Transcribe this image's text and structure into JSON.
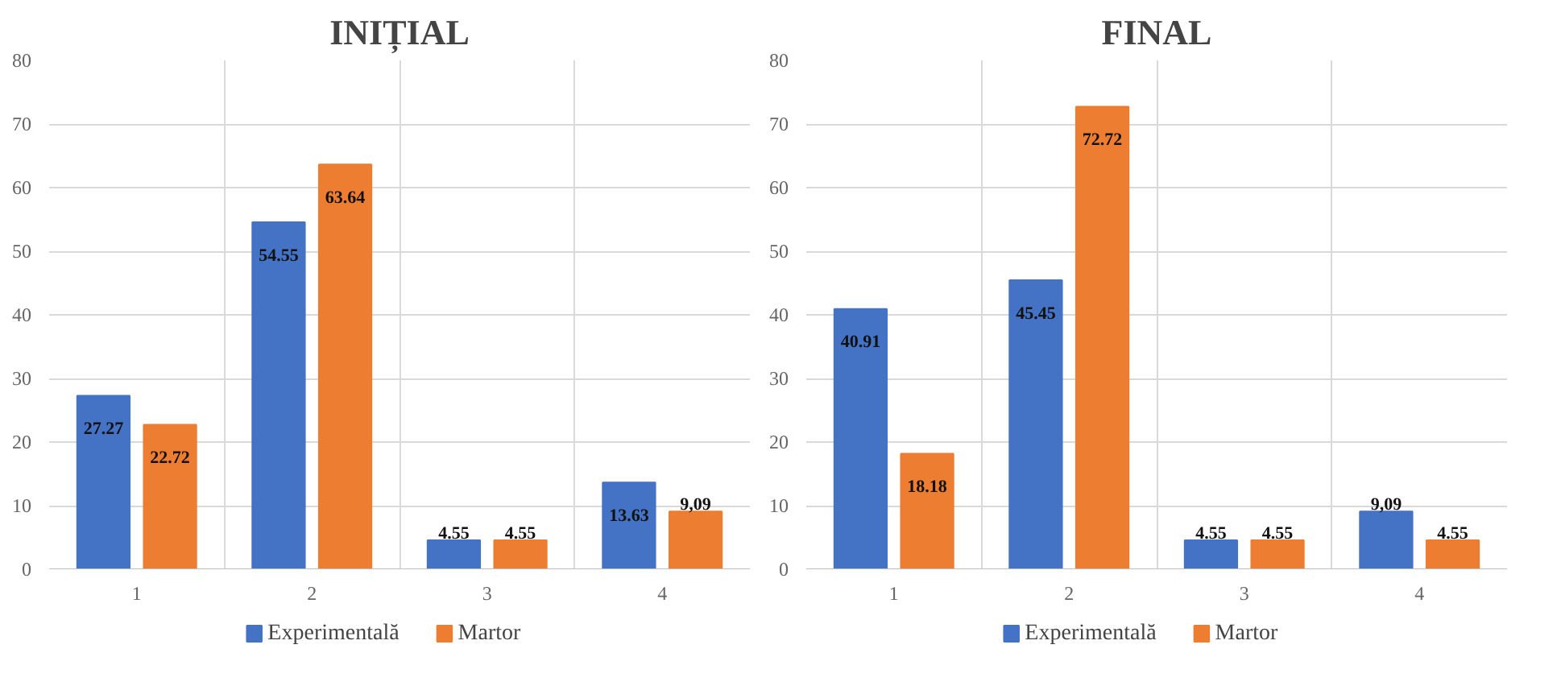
{
  "chart_data": [
    {
      "type": "bar",
      "title": "INIȚIAL",
      "categories": [
        "1",
        "2",
        "3",
        "4"
      ],
      "ylim": [
        0,
        80
      ],
      "yticks": [
        0,
        10,
        20,
        30,
        40,
        50,
        60,
        70,
        80
      ],
      "grid": true,
      "legend": "bottom",
      "series": [
        {
          "name": "Experimentală",
          "color": "#4472c4",
          "values": [
            27.27,
            54.55,
            4.55,
            13.63
          ],
          "value_labels": [
            "27.27",
            "54.55",
            "4.55",
            "13.63"
          ]
        },
        {
          "name": "Martor",
          "color": "#ed7d31",
          "values": [
            22.72,
            63.64,
            4.55,
            9.09
          ],
          "value_labels": [
            "22.72",
            "63.64",
            "4.55",
            "9,09"
          ]
        }
      ]
    },
    {
      "type": "bar",
      "title": "FINAL",
      "categories": [
        "1",
        "2",
        "3",
        "4"
      ],
      "ylim": [
        0,
        80
      ],
      "yticks": [
        0,
        10,
        20,
        30,
        40,
        50,
        60,
        70,
        80
      ],
      "grid": true,
      "legend": "bottom",
      "series": [
        {
          "name": "Experimentală",
          "color": "#4472c4",
          "values": [
            40.91,
            45.45,
            4.55,
            9.09
          ],
          "value_labels": [
            "40.91",
            "45.45",
            "4.55",
            "9,09"
          ]
        },
        {
          "name": "Martor",
          "color": "#ed7d31",
          "values": [
            18.18,
            72.72,
            4.55,
            4.55
          ],
          "value_labels": [
            "18.18",
            "72.72",
            "4.55",
            "4.55"
          ]
        }
      ]
    }
  ]
}
